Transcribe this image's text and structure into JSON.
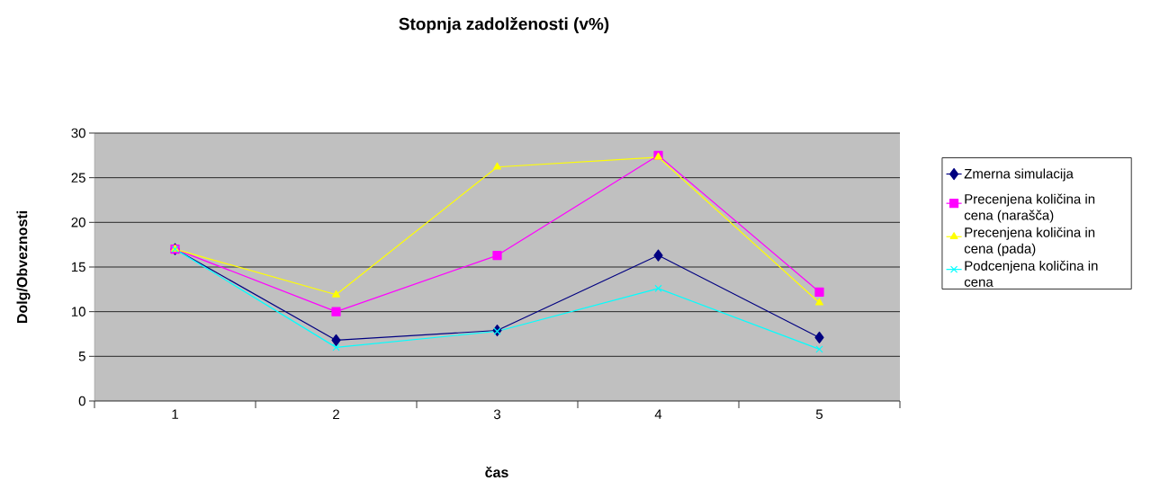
{
  "chart_data": {
    "type": "line",
    "title": "Stopnja zadolženosti (v%)",
    "xlabel": "čas",
    "ylabel": "Dolg/Obveznosti",
    "categories": [
      "1",
      "2",
      "3",
      "4",
      "5"
    ],
    "series": [
      {
        "name": "Zmerna simulacija",
        "color": "#000080",
        "marker": "diamond",
        "values": [
          17,
          6.8,
          7.9,
          16.3,
          7.1
        ]
      },
      {
        "name": "Precenjena količina in cena (narašča)",
        "color": "#ff00ff",
        "marker": "square",
        "values": [
          17,
          10,
          16.3,
          27.5,
          12.2
        ]
      },
      {
        "name": "Precenjena količina in cena (pada)",
        "color": "#ffff00",
        "marker": "triangle",
        "values": [
          17,
          11.9,
          26.2,
          27.3,
          11
        ]
      },
      {
        "name": "Podcenjena količina in cena",
        "color": "#00ffff",
        "marker": "cross",
        "values": [
          17,
          6,
          7.8,
          12.6,
          5.8
        ]
      }
    ],
    "ylim": [
      0,
      30
    ],
    "yticks": [
      0,
      5,
      10,
      15,
      20,
      25,
      30
    ],
    "grid": "y",
    "legend": "right",
    "line_style": "solid"
  }
}
